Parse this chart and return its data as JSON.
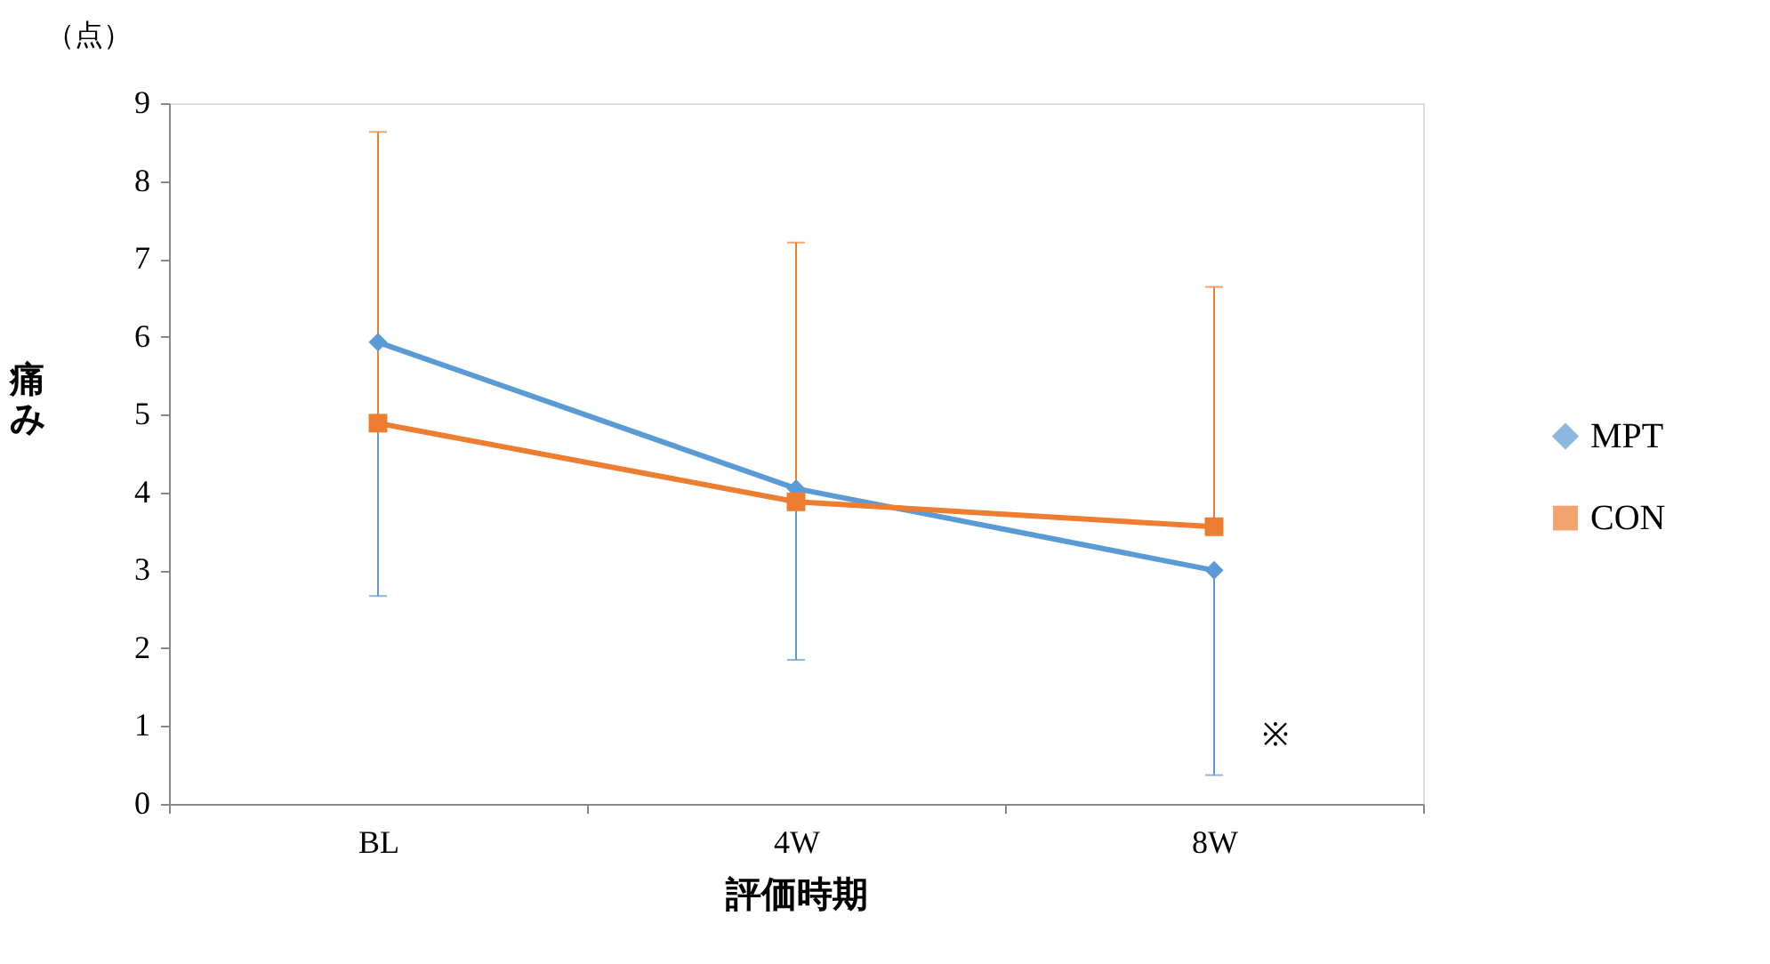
{
  "chart_data": {
    "type": "line",
    "xlabel": "評価時期",
    "ylabel": "痛み",
    "categories": [
      "BL",
      "4W",
      "8W"
    ],
    "series": [
      {
        "name": "MPT",
        "color": "#5b9bd5",
        "marker": "diamond",
        "values": [
          5.93,
          4.05,
          3.0
        ],
        "errors": [
          [
            2.67,
            5.93
          ],
          [
            1.85,
            4.05
          ],
          [
            0.37,
            3.0
          ]
        ]
      },
      {
        "name": "CON",
        "color": "#ed7d31",
        "marker": "square",
        "values": [
          4.89,
          3.88,
          3.56
        ],
        "errors": [
          [
            4.89,
            8.63
          ],
          [
            3.88,
            7.21
          ],
          [
            3.56,
            6.64
          ]
        ]
      }
    ],
    "ylim": [
      0,
      9
    ],
    "yticks": [
      0,
      1,
      2,
      3,
      4,
      5,
      6,
      7,
      8,
      9
    ],
    "grid": false,
    "legend": "right",
    "annotations": [
      "（点）",
      "※"
    ]
  }
}
